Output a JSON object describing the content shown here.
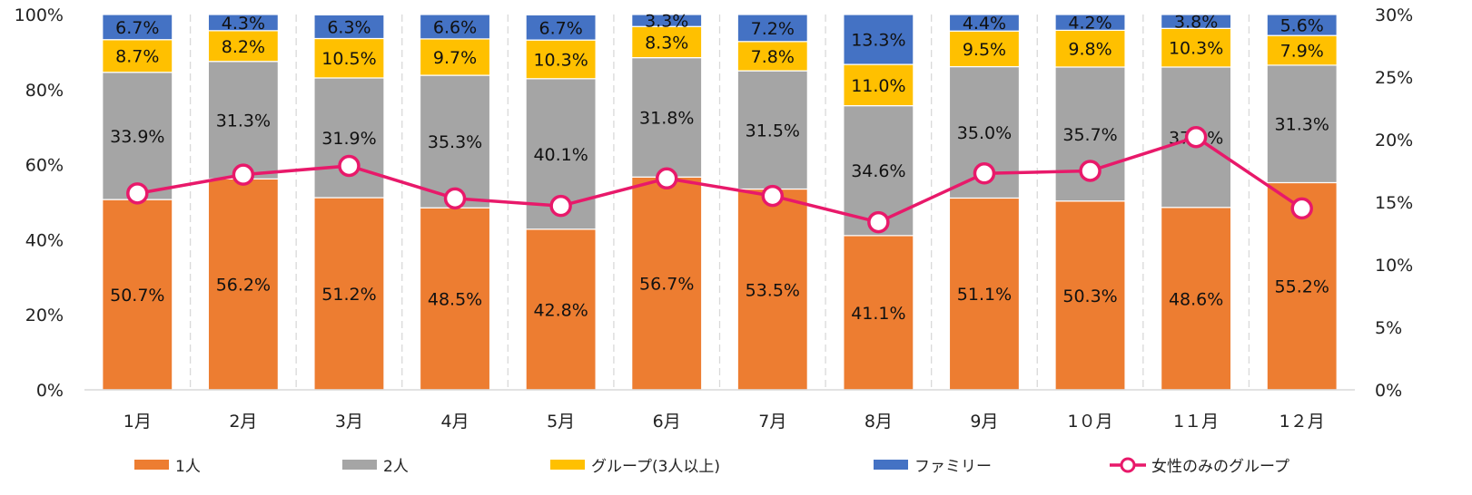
{
  "chart_data": {
    "type": "bar",
    "stacked": true,
    "categories": [
      "1月",
      "2月",
      "3月",
      "4月",
      "5月",
      "6月",
      "7月",
      "8月",
      "9月",
      "10月",
      "11月",
      "12月"
    ],
    "category_labels": [
      "1月",
      "2月",
      "3月",
      "4月",
      "5月",
      "6月",
      "7月",
      "8月",
      "9月",
      "1０月",
      "1１月",
      "1２月"
    ],
    "series": [
      {
        "name": "1人",
        "color": "#ED7D31",
        "values": [
          50.7,
          56.2,
          51.2,
          48.5,
          42.8,
          56.7,
          53.5,
          41.1,
          51.1,
          50.3,
          48.6,
          55.2
        ]
      },
      {
        "name": "2人",
        "color": "#A5A5A5",
        "values": [
          33.9,
          31.3,
          31.9,
          35.3,
          40.1,
          31.8,
          31.5,
          34.6,
          35.0,
          35.7,
          37.4,
          31.3
        ]
      },
      {
        "name": "グループ(3人以上)",
        "color": "#FFC000",
        "values": [
          8.7,
          8.2,
          10.5,
          9.7,
          10.3,
          8.3,
          7.8,
          11.0,
          9.5,
          9.8,
          10.3,
          7.9
        ]
      },
      {
        "name": "ファミリー",
        "color": "#4472C4",
        "values": [
          6.7,
          4.3,
          6.3,
          6.6,
          6.7,
          3.3,
          7.2,
          13.3,
          4.4,
          4.2,
          3.8,
          5.6
        ]
      }
    ],
    "line_series": {
      "name": "女性のみのグループ",
      "color": "#E8196A",
      "axis": "right",
      "values": [
        15.7,
        17.2,
        17.9,
        15.3,
        14.7,
        16.9,
        15.5,
        13.4,
        17.3,
        17.5,
        20.2,
        14.5
      ]
    },
    "data_labels": {
      "1人": [
        "50.7%",
        "56.2%",
        "51.2%",
        "48.5%",
        "42.8%",
        "56.7%",
        "53.5%",
        "41.1%",
        "51.1%",
        "50.3%",
        "48.6%",
        "55.2%"
      ],
      "2人": [
        "33.9%",
        "31.3%",
        "31.9%",
        "35.3%",
        "40.1%",
        "31.8%",
        "31.5%",
        "34.6%",
        "35.0%",
        "35.7%",
        "37.4%",
        "31.3%"
      ],
      "グループ(3人以上)": [
        "8.7%",
        "8.2%",
        "10.5%",
        "9.7%",
        "10.3%",
        "8.3%",
        "7.8%",
        "11.0%",
        "9.5%",
        "9.8%",
        "10.3%",
        "7.9%"
      ],
      "ファミリー": [
        "6.7%",
        "4.3%",
        "6.3%",
        "6.6%",
        "6.7%",
        "3.3%",
        "7.2%",
        "13.3%",
        "4.4%",
        "4.2%",
        "3.8%",
        "5.6%"
      ]
    },
    "y_left": {
      "ylim": [
        0,
        100
      ],
      "ticks": [
        0,
        20,
        40,
        60,
        80,
        100
      ],
      "tick_labels": [
        "0%",
        "20%",
        "40%",
        "60%",
        "80%",
        "100%"
      ]
    },
    "y_right": {
      "ylim": [
        0,
        30
      ],
      "ticks": [
        0,
        5,
        10,
        15,
        20,
        25,
        30
      ],
      "tick_labels": [
        "0%",
        "5%",
        "10%",
        "15%",
        "20%",
        "25%",
        "30%"
      ]
    },
    "legend": {
      "placement": "bottom",
      "items": [
        "1人",
        "2人",
        "グループ(3人以上)",
        "ファミリー",
        "女性のみのグループ"
      ]
    },
    "grid": false,
    "category_separators": "dashed"
  }
}
